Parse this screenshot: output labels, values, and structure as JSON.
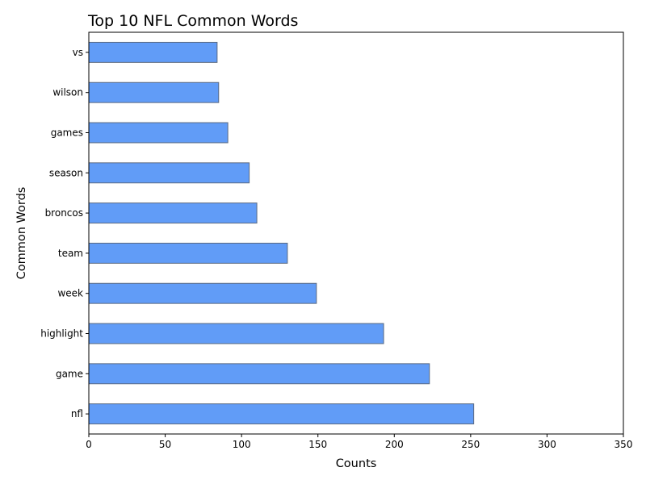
{
  "chart_data": {
    "type": "bar",
    "orientation": "horizontal",
    "title": "Top 10 NFL Common Words",
    "xlabel": "Counts",
    "ylabel": "Common Words",
    "categories": [
      "nfl",
      "game",
      "highlight",
      "week",
      "team",
      "broncos",
      "season",
      "games",
      "wilson",
      "vs"
    ],
    "values": [
      252,
      223,
      193,
      149,
      130,
      110,
      105,
      91,
      85,
      84
    ],
    "xlim": [
      0,
      350
    ],
    "xticks": [
      0,
      50,
      100,
      150,
      200,
      250,
      300,
      350
    ],
    "grid": false,
    "legend": "none",
    "colors": {
      "bar_fill": "#619cf7",
      "bar_edge": "#5a6a82",
      "axis": "#000000"
    }
  }
}
